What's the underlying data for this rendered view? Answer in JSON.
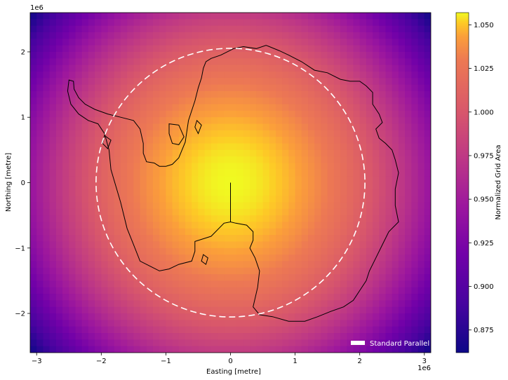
{
  "chart_data": {
    "type": "heatmap",
    "title": "",
    "xlabel": "Easting [metre]",
    "ylabel": "Northing [metre]",
    "x_offset_label": "1e6",
    "y_offset_label": "1e6",
    "xlim": [
      -3.1,
      3.1
    ],
    "ylim": [
      -2.6,
      2.6
    ],
    "x_ticks": [
      {
        "value": -3,
        "label": "−3"
      },
      {
        "value": -2,
        "label": "−2"
      },
      {
        "value": -1,
        "label": "−1"
      },
      {
        "value": 0,
        "label": "0"
      },
      {
        "value": 1,
        "label": "1"
      },
      {
        "value": 2,
        "label": "2"
      },
      {
        "value": 3,
        "label": "3"
      }
    ],
    "y_ticks": [
      {
        "value": -2,
        "label": "−2"
      },
      {
        "value": -1,
        "label": "−1"
      },
      {
        "value": 0,
        "label": "0"
      },
      {
        "value": 1,
        "label": "1"
      },
      {
        "value": 2,
        "label": "2"
      }
    ],
    "colormap": "plasma",
    "colorbar": {
      "label": "Normalized Grid Area",
      "min": 0.862,
      "max": 1.057,
      "ticks": [
        {
          "value": 0.875,
          "label": "0.875"
        },
        {
          "value": 0.9,
          "label": "0.900"
        },
        {
          "value": 0.925,
          "label": "0.925"
        },
        {
          "value": 0.95,
          "label": "0.950"
        },
        {
          "value": 0.975,
          "label": "0.975"
        },
        {
          "value": 1.0,
          "label": "1.000"
        },
        {
          "value": 1.025,
          "label": "1.025"
        },
        {
          "value": 1.05,
          "label": "1.050"
        }
      ]
    },
    "field": {
      "center": [
        0,
        0
      ],
      "value_at_center": 1.057,
      "value_at_corner": 0.862
    },
    "standard_parallel": {
      "radius": 2.08,
      "color": "#ffffff",
      "style": "dashed"
    },
    "legend": {
      "placement": "lower-right",
      "entries": [
        {
          "label": "Standard Parallel",
          "color": "#ffffff"
        }
      ]
    },
    "coastline": [
      [
        -2.5,
        1.57
      ],
      [
        -2.43,
        1.55
      ],
      [
        -2.42,
        1.43
      ],
      [
        -2.35,
        1.3
      ],
      [
        -2.25,
        1.2
      ],
      [
        -2.1,
        1.12
      ],
      [
        -1.9,
        1.05
      ],
      [
        -1.7,
        1.0
      ],
      [
        -1.5,
        0.95
      ],
      [
        -1.4,
        0.82
      ],
      [
        -1.35,
        0.6
      ],
      [
        -1.35,
        0.45
      ],
      [
        -1.3,
        0.32
      ],
      [
        -1.18,
        0.3
      ],
      [
        -1.1,
        0.25
      ],
      [
        -1.0,
        0.25
      ],
      [
        -0.9,
        0.28
      ],
      [
        -0.8,
        0.38
      ],
      [
        -0.7,
        0.62
      ],
      [
        -0.65,
        0.95
      ],
      [
        -0.55,
        1.25
      ],
      [
        -0.5,
        1.45
      ],
      [
        -0.45,
        1.6
      ],
      [
        -0.42,
        1.75
      ],
      [
        -0.38,
        1.85
      ],
      [
        -0.3,
        1.9
      ],
      [
        -0.15,
        1.95
      ],
      [
        0.05,
        2.05
      ],
      [
        0.2,
        2.08
      ],
      [
        0.4,
        2.05
      ],
      [
        0.55,
        2.1
      ],
      [
        0.75,
        2.02
      ],
      [
        0.9,
        1.95
      ],
      [
        1.1,
        1.85
      ],
      [
        1.3,
        1.72
      ],
      [
        1.5,
        1.68
      ],
      [
        1.7,
        1.58
      ],
      [
        1.85,
        1.55
      ],
      [
        2.0,
        1.55
      ],
      [
        2.1,
        1.48
      ],
      [
        2.2,
        1.38
      ],
      [
        2.2,
        1.2
      ],
      [
        2.3,
        1.05
      ],
      [
        2.35,
        0.92
      ],
      [
        2.25,
        0.82
      ],
      [
        2.3,
        0.68
      ],
      [
        2.4,
        0.6
      ],
      [
        2.5,
        0.5
      ],
      [
        2.55,
        0.35
      ],
      [
        2.6,
        0.15
      ],
      [
        2.55,
        -0.1
      ],
      [
        2.55,
        -0.35
      ],
      [
        2.6,
        -0.6
      ],
      [
        2.45,
        -0.75
      ],
      [
        2.35,
        -0.95
      ],
      [
        2.25,
        -1.15
      ],
      [
        2.15,
        -1.35
      ],
      [
        2.1,
        -1.5
      ],
      [
        2.0,
        -1.65
      ],
      [
        1.9,
        -1.8
      ],
      [
        1.75,
        -1.9
      ],
      [
        1.55,
        -1.97
      ],
      [
        1.35,
        -2.05
      ],
      [
        1.15,
        -2.12
      ],
      [
        0.9,
        -2.12
      ],
      [
        0.65,
        -2.05
      ],
      [
        0.45,
        -2.02
      ],
      [
        0.35,
        -1.9
      ],
      [
        0.42,
        -1.6
      ],
      [
        0.45,
        -1.35
      ],
      [
        0.38,
        -1.15
      ],
      [
        0.3,
        -1.0
      ],
      [
        0.35,
        -0.88
      ],
      [
        0.35,
        -0.75
      ],
      [
        0.25,
        -0.65
      ],
      [
        0.08,
        -0.62
      ],
      [
        0.0,
        -0.6
      ],
      [
        -0.1,
        -0.62
      ],
      [
        -0.3,
        -0.82
      ],
      [
        -0.55,
        -0.9
      ],
      [
        -0.55,
        -1.05
      ],
      [
        -0.6,
        -1.2
      ],
      [
        -0.8,
        -1.25
      ],
      [
        -0.95,
        -1.32
      ],
      [
        -1.1,
        -1.35
      ],
      [
        -1.4,
        -1.2
      ],
      [
        -1.5,
        -0.95
      ],
      [
        -1.6,
        -0.7
      ],
      [
        -1.7,
        -0.3
      ],
      [
        -1.85,
        0.2
      ],
      [
        -1.88,
        0.5
      ],
      [
        -1.95,
        0.75
      ],
      [
        -2.05,
        0.9
      ],
      [
        -2.2,
        0.95
      ],
      [
        -2.35,
        1.05
      ],
      [
        -2.47,
        1.2
      ],
      [
        -2.52,
        1.4
      ],
      [
        -2.5,
        1.57
      ]
    ],
    "islands": [
      [
        [
          -0.95,
          0.9
        ],
        [
          -0.8,
          0.88
        ],
        [
          -0.72,
          0.7
        ],
        [
          -0.8,
          0.58
        ],
        [
          -0.9,
          0.6
        ],
        [
          -0.95,
          0.75
        ],
        [
          -0.95,
          0.9
        ]
      ],
      [
        [
          -0.52,
          0.95
        ],
        [
          -0.45,
          0.88
        ],
        [
          -0.5,
          0.75
        ],
        [
          -0.55,
          0.85
        ],
        [
          -0.52,
          0.95
        ]
      ],
      [
        [
          -1.95,
          0.72
        ],
        [
          -1.85,
          0.65
        ],
        [
          -1.9,
          0.52
        ],
        [
          -1.98,
          0.6
        ],
        [
          -1.95,
          0.72
        ]
      ],
      [
        [
          -0.42,
          -1.1
        ],
        [
          -0.35,
          -1.15
        ],
        [
          -0.38,
          -1.25
        ],
        [
          -0.45,
          -1.2
        ],
        [
          -0.42,
          -1.1
        ]
      ]
    ],
    "meridian_line": [
      [
        0,
        0
      ],
      [
        0,
        -0.6
      ]
    ]
  }
}
